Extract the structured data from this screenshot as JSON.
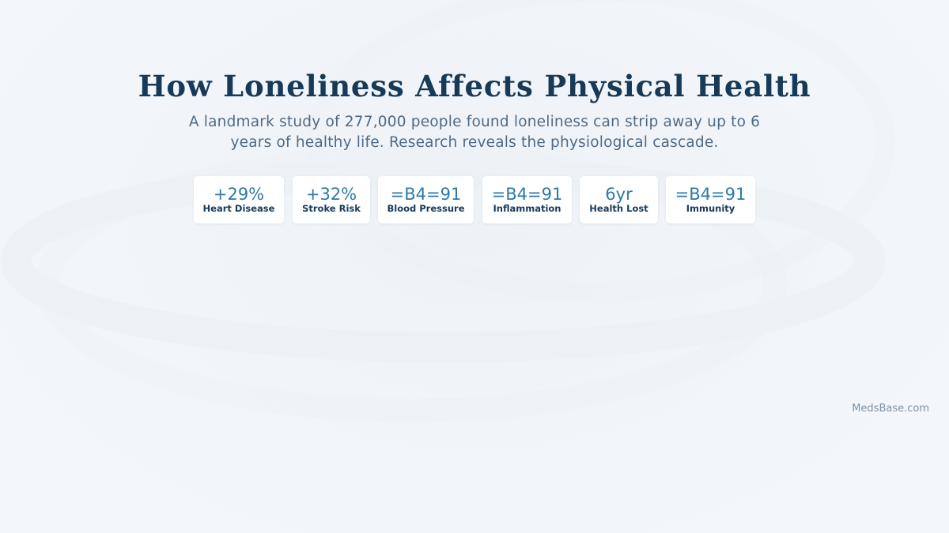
{
  "header": {
    "title": "How Loneliness Affects Physical Health",
    "subtitle": "A landmark study of 277,000 people found loneliness can strip away up to 6 years of healthy life. Research reveals the physiological cascade."
  },
  "stats": [
    {
      "value": "+29%",
      "label": "Heart Disease"
    },
    {
      "value": "+32%",
      "label": "Stroke Risk"
    },
    {
      "value": "=B4=91",
      "label": "Blood Pressure"
    },
    {
      "value": "=B4=91",
      "label": "Inflammation"
    },
    {
      "value": "6yr",
      "label": "Health Lost"
    },
    {
      "value": "=B4=91",
      "label": "Immunity"
    }
  ],
  "footer": {
    "brand": "MedsBase.com"
  },
  "colors": {
    "title": "#163a58",
    "subtitle": "#4f6a85",
    "stat_value": "#2e7aa8",
    "stat_label": "#163a58",
    "card_background": "#ffffff",
    "brand": "#7f92a5"
  }
}
